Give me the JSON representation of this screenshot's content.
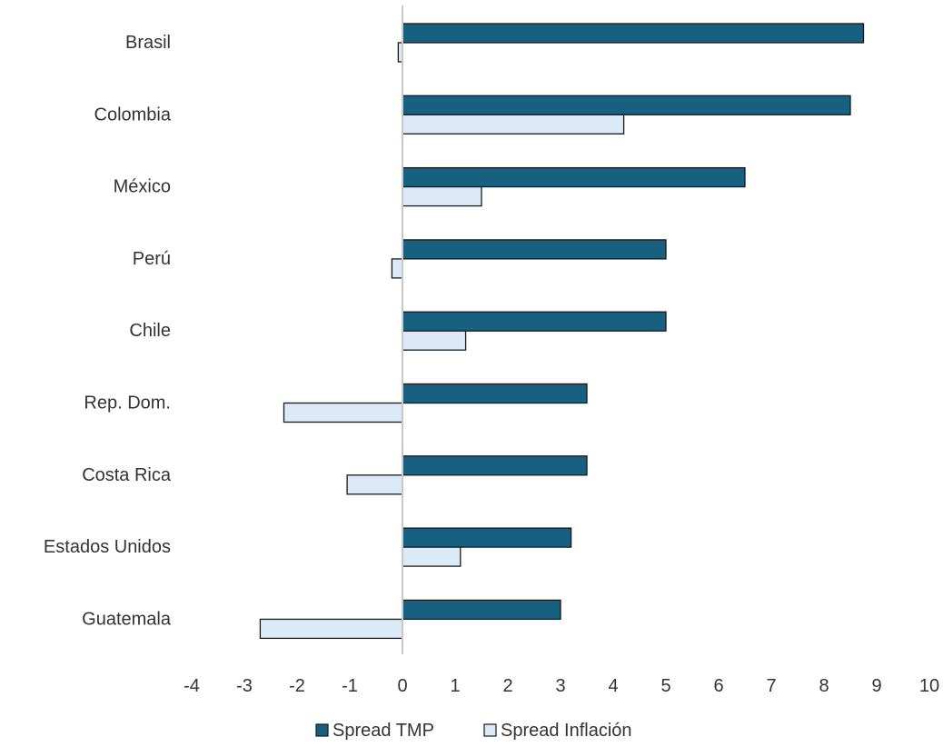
{
  "chart_data": {
    "type": "bar",
    "orientation": "horizontal",
    "title": "",
    "xlabel": "",
    "ylabel": "",
    "categories": [
      "Brasil",
      "Colombia",
      "México",
      "Perú",
      "Chile",
      "Rep. Dom.",
      "Costa Rica",
      "Estados Unidos",
      "Guatemala"
    ],
    "series": [
      {
        "name": "Spread TMP",
        "color": "#17607f",
        "values": [
          8.75,
          8.5,
          6.5,
          5.0,
          5.0,
          3.5,
          3.5,
          3.2,
          3.0
        ]
      },
      {
        "name": "Spread Inflación",
        "color": "#dce9f6",
        "values": [
          -0.08,
          4.2,
          1.5,
          -0.2,
          1.2,
          -2.25,
          -1.05,
          1.1,
          -2.7
        ]
      }
    ],
    "xlim": [
      -4,
      10
    ],
    "xticks": [
      "-4",
      "-3",
      "-2",
      "-1",
      "0",
      "1",
      "2",
      "3",
      "4",
      "5",
      "6",
      "7",
      "8",
      "9",
      "10"
    ],
    "grid": false,
    "legend_position": "bottom-center"
  }
}
